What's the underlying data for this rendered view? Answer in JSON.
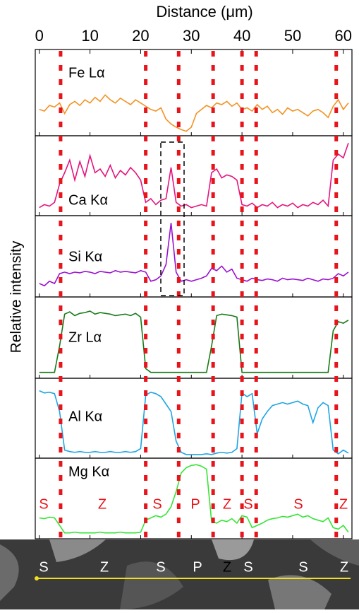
{
  "chart_data": {
    "type": "line",
    "xlabel": "Distance (μm)",
    "ylabel": "Relative intensity",
    "xlim": [
      -0.8,
      61.7
    ],
    "xticks": [
      0,
      10,
      20,
      30,
      40,
      50,
      60
    ],
    "ylim": [
      0,
      100
    ],
    "boundaries": [
      4.2,
      21,
      27.5,
      34.3,
      40,
      42.8,
      58.6
    ],
    "boundary_color": "#e8141b",
    "zone_labels": [
      "S",
      "Z",
      "S",
      "P",
      "Z",
      "S",
      "S",
      "Z"
    ],
    "image_labels": [
      "S",
      "Z",
      "S",
      "P",
      "Z",
      "S",
      "S",
      "Z"
    ],
    "x": [
      0,
      1,
      2,
      3,
      4,
      5,
      6,
      7,
      8,
      9,
      10,
      11,
      12,
      13,
      14,
      15,
      16,
      17,
      18,
      19,
      20,
      21,
      22,
      23,
      24,
      25,
      26,
      27,
      28,
      29,
      30,
      31,
      32,
      33,
      34,
      35,
      36,
      37,
      38,
      39,
      40,
      41,
      42,
      43,
      44,
      45,
      46,
      47,
      48,
      49,
      50,
      51,
      52,
      53,
      54,
      55,
      56,
      57,
      58,
      59,
      60,
      61
    ],
    "series": [
      {
        "name": "Fe Lα",
        "color": "#f39322",
        "values": [
          30,
          28,
          35,
          33,
          38,
          25,
          36,
          40,
          35,
          42,
          38,
          45,
          40,
          48,
          42,
          38,
          44,
          40,
          36,
          42,
          38,
          34,
          30,
          28,
          32,
          18,
          12,
          8,
          5,
          3,
          8,
          25,
          30,
          35,
          32,
          38,
          36,
          40,
          34,
          38,
          30,
          32,
          28,
          36,
          30,
          34,
          26,
          30,
          24,
          32,
          28,
          30,
          26,
          22,
          28,
          30,
          26,
          20,
          34,
          42,
          30,
          38
        ]
      },
      {
        "name": "Ca Kα",
        "color": "#e4147f",
        "values": [
          8,
          12,
          10,
          15,
          40,
          55,
          72,
          45,
          70,
          50,
          78,
          55,
          60,
          50,
          65,
          48,
          58,
          52,
          62,
          55,
          45,
          15,
          20,
          12,
          18,
          20,
          62,
          15,
          10,
          12,
          8,
          10,
          12,
          10,
          55,
          60,
          48,
          52,
          50,
          45,
          12,
          10,
          14,
          8,
          12,
          10,
          15,
          8,
          12,
          10,
          14,
          8,
          12,
          10,
          15,
          12,
          18,
          10,
          72,
          80,
          75,
          95
        ]
      },
      {
        "name": "Si Kα",
        "color": "#9a0fcf",
        "values": [
          15,
          12,
          18,
          15,
          28,
          30,
          28,
          30,
          29,
          31,
          30,
          28,
          31,
          30,
          29,
          32,
          30,
          31,
          30,
          29,
          32,
          30,
          18,
          20,
          25,
          40,
          95,
          30,
          18,
          20,
          18,
          20,
          22,
          25,
          35,
          32,
          38,
          30,
          34,
          22,
          20,
          18,
          22,
          20,
          19,
          21,
          20,
          18,
          22,
          20,
          21,
          20,
          19,
          22,
          20,
          18,
          21,
          20,
          22,
          28,
          25,
          30
        ]
      },
      {
        "name": "Zr Lα",
        "color": "#177a17",
        "values": [
          5,
          5,
          5,
          5,
          40,
          82,
          85,
          80,
          83,
          84,
          86,
          82,
          84,
          83,
          82,
          80,
          81,
          82,
          80,
          83,
          78,
          10,
          5,
          5,
          5,
          5,
          5,
          5,
          5,
          5,
          5,
          5,
          5,
          5,
          40,
          80,
          82,
          81,
          80,
          78,
          5,
          5,
          5,
          5,
          5,
          5,
          5,
          5,
          5,
          5,
          5,
          5,
          5,
          5,
          5,
          5,
          5,
          5,
          60,
          72,
          70,
          74
        ]
      },
      {
        "name": "Al Kα",
        "color": "#1fa5e3",
        "values": [
          88,
          85,
          86,
          84,
          60,
          8,
          6,
          5,
          6,
          5,
          5,
          6,
          5,
          5,
          6,
          5,
          5,
          6,
          5,
          6,
          10,
          82,
          86,
          84,
          80,
          70,
          60,
          20,
          5,
          2,
          2,
          2,
          2,
          3,
          2,
          4,
          5,
          4,
          5,
          10,
          85,
          80,
          84,
          30,
          50,
          60,
          68,
          70,
          72,
          70,
          72,
          74,
          70,
          68,
          45,
          65,
          72,
          68,
          8,
          3,
          8,
          4
        ]
      },
      {
        "name": "Mg Kα",
        "color": "#35e535",
        "values": [
          25,
          24,
          26,
          25,
          15,
          5,
          5,
          6,
          5,
          5,
          5,
          5,
          6,
          5,
          5,
          5,
          6,
          5,
          5,
          5,
          6,
          22,
          25,
          28,
          26,
          30,
          40,
          60,
          85,
          92,
          95,
          96,
          94,
          90,
          20,
          18,
          22,
          20,
          24,
          18,
          28,
          26,
          12,
          15,
          18,
          22,
          24,
          25,
          27,
          26,
          28,
          30,
          26,
          28,
          24,
          22,
          20,
          25,
          12,
          10,
          15,
          6
        ]
      }
    ]
  }
}
